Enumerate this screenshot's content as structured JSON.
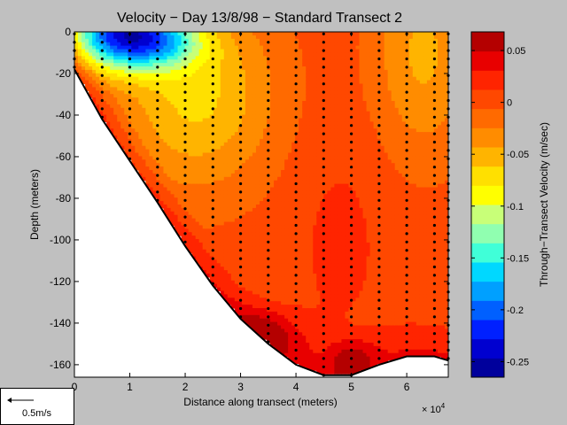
{
  "chart_data": {
    "type": "heatmap",
    "title": "Velocity − Day 13/8/98 − Standard Transect 2",
    "xlabel": "Distance along transect (meters)",
    "ylabel": "Depth (meters)",
    "x_multiplier_label": "× 10",
    "x_multiplier_exponent": "4",
    "x_scale": 10000,
    "xlim": [
      0,
      67500
    ],
    "ylim": [
      -166,
      0
    ],
    "xticks": [
      0,
      1,
      2,
      3,
      4,
      5,
      6
    ],
    "yticks": [
      0,
      -20,
      -40,
      -60,
      -80,
      -100,
      -120,
      -140,
      -160
    ],
    "colorbar": {
      "label": "Through−Transect Velocity (m/sec)",
      "range": [
        -0.265,
        0.068
      ],
      "ticks": [
        0.05,
        0,
        -0.05,
        -0.1,
        -0.15,
        -0.2,
        -0.25
      ],
      "colors": [
        "#00009c",
        "#0000d0",
        "#0020ff",
        "#0060ff",
        "#00a0ff",
        "#00d8ff",
        "#40ffd8",
        "#90ffb0",
        "#c8ff78",
        "#ffff00",
        "#ffe000",
        "#ffb400",
        "#ff8c00",
        "#ff6a00",
        "#ff4800",
        "#ff2400",
        "#e80000",
        "#b40000"
      ]
    },
    "bottom_profile": [
      {
        "x": 0,
        "depth": -18
      },
      {
        "x": 5000,
        "depth": -42
      },
      {
        "x": 10000,
        "depth": -62
      },
      {
        "x": 15000,
        "depth": -82
      },
      {
        "x": 20000,
        "depth": -103
      },
      {
        "x": 25000,
        "depth": -122
      },
      {
        "x": 30000,
        "depth": -138
      },
      {
        "x": 35000,
        "depth": -150
      },
      {
        "x": 40000,
        "depth": -160
      },
      {
        "x": 45000,
        "depth": -165
      },
      {
        "x": 50000,
        "depth": -165
      },
      {
        "x": 55000,
        "depth": -160
      },
      {
        "x": 60000,
        "depth": -156
      },
      {
        "x": 65000,
        "depth": -156
      },
      {
        "x": 67500,
        "depth": -158
      }
    ],
    "station_x": [
      0,
      5000,
      10000,
      15000,
      20000,
      25000,
      30000,
      35000,
      40000,
      45000,
      50000,
      55000,
      60000,
      65000,
      67500
    ],
    "sample_spacing_m": 4
  },
  "scale_legend": {
    "label": "0.5m/s"
  }
}
